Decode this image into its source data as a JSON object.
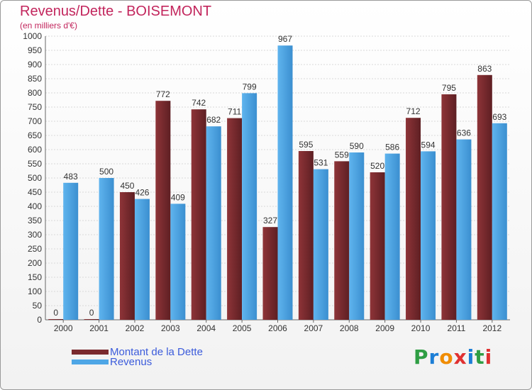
{
  "header": {
    "title": "Revenus/Dette - BOISEMONT",
    "subtitle": "(en milliers d'€)"
  },
  "legend": {
    "debt_label": "Montant de la Dette",
    "revenue_label": "Revenus"
  },
  "logo": {
    "text": "Proxiti",
    "letters": [
      "P",
      "r",
      "o",
      "x",
      "i",
      "t",
      "i"
    ],
    "colors": [
      "#2f9e44",
      "#1c7ed6",
      "#f08c00",
      "#e03131",
      "#1c7ed6",
      "#2f9e44",
      "#e03131"
    ]
  },
  "colors": {
    "debt": "#7a2a2e",
    "revenue": "#4ea6e6",
    "title": "#c2255c",
    "legend_text": "#3b5bdb",
    "grid": "#d9d9d9"
  },
  "chart_data": {
    "type": "bar",
    "title": "Revenus/Dette - BOISEMONT",
    "ylabel": "(en milliers d'€)",
    "xlabel": "",
    "categories": [
      "2000",
      "2001",
      "2002",
      "2003",
      "2004",
      "2005",
      "2006",
      "2007",
      "2008",
      "2009",
      "2010",
      "2011",
      "2012"
    ],
    "series": [
      {
        "name": "Montant de la Dette",
        "values": [
          0,
          0,
          450,
          772,
          742,
          711,
          327,
          595,
          559,
          520,
          712,
          795,
          863
        ]
      },
      {
        "name": "Revenus",
        "values": [
          483,
          500,
          426,
          409,
          682,
          799,
          967,
          531,
          590,
          586,
          594,
          636,
          693
        ]
      }
    ],
    "ylim": [
      0,
      1000
    ],
    "yticks": [
      0,
      50,
      100,
      150,
      200,
      250,
      300,
      350,
      400,
      450,
      500,
      550,
      600,
      650,
      700,
      750,
      800,
      850,
      900,
      950,
      1000
    ],
    "grid": true,
    "legend_position": "bottom-left"
  }
}
